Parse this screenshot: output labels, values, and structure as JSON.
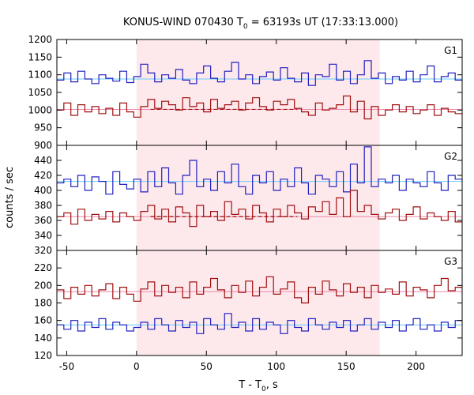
{
  "title": {
    "prefix": "KONUS-WIND 070430 T",
    "sub": "0",
    "suffix": " = 63193s UT (17:33:13.000)"
  },
  "axes": {
    "xlabel_main": "T - T",
    "xlabel_sub": "0",
    "xlabel_tail": ", s",
    "ylabel": "counts / sec"
  },
  "colors": {
    "blue_series": "#2020c0",
    "red_series": "#a01010",
    "blue_background": "#66ccff",
    "red_background": "#ee88aa",
    "interval_shade": "#fde8ec"
  },
  "chart_data": [
    {
      "type": "line",
      "panel": "G1",
      "xlim": [
        -57,
        233
      ],
      "ylim": [
        900,
        1200
      ],
      "yticks": [
        900,
        950,
        1000,
        1050,
        1100,
        1150,
        1200
      ],
      "xticks": [
        -50,
        0,
        50,
        100,
        150,
        200
      ],
      "highlight_interval": [
        0,
        174
      ],
      "background_levels": [
        {
          "series": "upper",
          "value": 1088
        },
        {
          "series": "lower",
          "value": 1002
        }
      ],
      "series": [
        {
          "key": "upper",
          "x": [
            -57,
            -52,
            -47,
            -42,
            -37,
            -32,
            -27,
            -22,
            -17,
            -12,
            -7,
            -2,
            3,
            8,
            13,
            18,
            23,
            28,
            33,
            38,
            43,
            48,
            53,
            58,
            63,
            68,
            73,
            78,
            83,
            88,
            93,
            98,
            103,
            108,
            113,
            118,
            123,
            128,
            133,
            138,
            143,
            148,
            153,
            158,
            163,
            168,
            173,
            178,
            183,
            188,
            193,
            198,
            203,
            208,
            213,
            218,
            223,
            228
          ],
          "y": [
            1085,
            1105,
            1080,
            1110,
            1088,
            1075,
            1100,
            1090,
            1082,
            1110,
            1078,
            1095,
            1130,
            1105,
            1080,
            1100,
            1090,
            1115,
            1085,
            1075,
            1105,
            1125,
            1090,
            1080,
            1110,
            1135,
            1088,
            1100,
            1075,
            1095,
            1108,
            1085,
            1120,
            1090,
            1080,
            1105,
            1070,
            1100,
            1095,
            1130,
            1085,
            1110,
            1075,
            1100,
            1140,
            1090,
            1105,
            1075,
            1095,
            1085,
            1110,
            1080,
            1100,
            1125,
            1080,
            1095,
            1105,
            1085
          ]
        },
        {
          "key": "lower",
          "x": [
            -57,
            -52,
            -47,
            -42,
            -37,
            -32,
            -27,
            -22,
            -17,
            -12,
            -7,
            -2,
            3,
            8,
            13,
            18,
            23,
            28,
            33,
            38,
            43,
            48,
            53,
            58,
            63,
            68,
            73,
            78,
            83,
            88,
            93,
            98,
            103,
            108,
            113,
            118,
            123,
            128,
            133,
            138,
            143,
            148,
            153,
            158,
            163,
            168,
            173,
            178,
            183,
            188,
            193,
            198,
            203,
            208,
            213,
            218,
            223,
            228
          ],
          "y": [
            1000,
            1020,
            985,
            1015,
            995,
            1010,
            990,
            1005,
            985,
            1020,
            995,
            980,
            1010,
            1030,
            1005,
            1025,
            1015,
            1000,
            1035,
            1010,
            1020,
            995,
            1030,
            1005,
            1015,
            1025,
            1000,
            1020,
            1035,
            1010,
            1000,
            1025,
            1015,
            1030,
            1005,
            995,
            985,
            1020,
            1000,
            1005,
            1015,
            1040,
            995,
            1025,
            975,
            1010,
            985,
            1000,
            1015,
            995,
            1010,
            990,
            1000,
            1015,
            985,
            1005,
            995,
            990
          ]
        }
      ]
    },
    {
      "type": "line",
      "panel": "G2",
      "xlim": [
        -57,
        233
      ],
      "ylim": [
        320,
        460
      ],
      "yticks": [
        320,
        340,
        360,
        380,
        400,
        420,
        440
      ],
      "xticks": [
        -50,
        0,
        50,
        100,
        150,
        200
      ],
      "highlight_interval": [
        0,
        174
      ],
      "background_levels": [
        {
          "series": "upper",
          "value": 412
        },
        {
          "series": "lower",
          "value": 365
        }
      ],
      "series": [
        {
          "key": "upper",
          "x": [
            -57,
            -52,
            -47,
            -42,
            -37,
            -32,
            -27,
            -22,
            -17,
            -12,
            -7,
            -2,
            3,
            8,
            13,
            18,
            23,
            28,
            33,
            38,
            43,
            48,
            53,
            58,
            63,
            68,
            73,
            78,
            83,
            88,
            93,
            98,
            103,
            108,
            113,
            118,
            123,
            128,
            133,
            138,
            143,
            148,
            153,
            158,
            163,
            168,
            173,
            178,
            183,
            188,
            193,
            198,
            203,
            208,
            213,
            218,
            223,
            228
          ],
          "y": [
            410,
            415,
            405,
            420,
            400,
            418,
            412,
            395,
            425,
            408,
            402,
            415,
            398,
            425,
            405,
            430,
            410,
            395,
            420,
            440,
            405,
            415,
            400,
            425,
            410,
            435,
            405,
            395,
            420,
            410,
            425,
            400,
            415,
            405,
            430,
            410,
            395,
            420,
            415,
            405,
            425,
            398,
            435,
            410,
            458,
            405,
            415,
            410,
            420,
            400,
            415,
            410,
            405,
            425,
            410,
            400,
            420,
            415
          ]
        },
        {
          "key": "lower",
          "x": [
            -57,
            -52,
            -47,
            -42,
            -37,
            -32,
            -27,
            -22,
            -17,
            -12,
            -7,
            -2,
            3,
            8,
            13,
            18,
            23,
            28,
            33,
            38,
            43,
            48,
            53,
            58,
            63,
            68,
            73,
            78,
            83,
            88,
            93,
            98,
            103,
            108,
            113,
            118,
            123,
            128,
            133,
            138,
            143,
            148,
            153,
            158,
            163,
            168,
            173,
            178,
            183,
            188,
            193,
            198,
            203,
            208,
            213,
            218,
            223,
            228
          ],
          "y": [
            365,
            370,
            355,
            375,
            360,
            368,
            362,
            372,
            358,
            370,
            365,
            360,
            372,
            380,
            362,
            375,
            358,
            378,
            370,
            352,
            380,
            365,
            372,
            360,
            385,
            368,
            375,
            362,
            380,
            370,
            358,
            375,
            365,
            380,
            370,
            362,
            378,
            372,
            385,
            368,
            390,
            365,
            400,
            372,
            380,
            368,
            362,
            370,
            375,
            360,
            368,
            378,
            362,
            370,
            365,
            360,
            372,
            358
          ]
        }
      ]
    },
    {
      "type": "line",
      "panel": "G3",
      "xlim": [
        -57,
        233
      ],
      "ylim": [
        120,
        240
      ],
      "yticks": [
        120,
        140,
        160,
        180,
        200,
        220
      ],
      "xticks": [
        -50,
        0,
        50,
        100,
        150,
        200
      ],
      "highlight_interval": [
        0,
        174
      ],
      "background_levels": [
        {
          "series": "upper",
          "value": 193
        },
        {
          "series": "lower",
          "value": 155
        }
      ],
      "series": [
        {
          "key": "upper",
          "x": [
            -57,
            -52,
            -47,
            -42,
            -37,
            -32,
            -27,
            -22,
            -17,
            -12,
            -7,
            -2,
            3,
            8,
            13,
            18,
            23,
            28,
            33,
            38,
            43,
            48,
            53,
            58,
            63,
            68,
            73,
            78,
            83,
            88,
            93,
            98,
            103,
            108,
            113,
            118,
            123,
            128,
            133,
            138,
            143,
            148,
            153,
            158,
            163,
            168,
            173,
            178,
            183,
            188,
            193,
            198,
            203,
            208,
            213,
            218,
            223,
            228
          ],
          "y": [
            195,
            185,
            198,
            190,
            200,
            188,
            195,
            202,
            185,
            198,
            190,
            182,
            196,
            204,
            188,
            200,
            192,
            198,
            186,
            204,
            190,
            198,
            208,
            195,
            186,
            200,
            192,
            205,
            188,
            198,
            210,
            190,
            196,
            204,
            186,
            180,
            198,
            190,
            205,
            195,
            188,
            202,
            192,
            198,
            186,
            200,
            192,
            196,
            190,
            204,
            188,
            198,
            195,
            186,
            200,
            208,
            194,
            198
          ]
        },
        {
          "key": "lower",
          "x": [
            -57,
            -52,
            -47,
            -42,
            -37,
            -32,
            -27,
            -22,
            -17,
            -12,
            -7,
            -2,
            3,
            8,
            13,
            18,
            23,
            28,
            33,
            38,
            43,
            48,
            53,
            58,
            63,
            68,
            73,
            78,
            83,
            88,
            93,
            98,
            103,
            108,
            113,
            118,
            123,
            128,
            133,
            138,
            143,
            148,
            153,
            158,
            163,
            168,
            173,
            178,
            183,
            188,
            193,
            198,
            203,
            208,
            213,
            218,
            223,
            228
          ],
          "y": [
            155,
            150,
            160,
            148,
            158,
            152,
            162,
            150,
            158,
            155,
            148,
            152,
            158,
            150,
            162,
            155,
            148,
            160,
            152,
            158,
            145,
            162,
            155,
            150,
            168,
            152,
            158,
            148,
            162,
            150,
            158,
            155,
            145,
            160,
            152,
            148,
            162,
            155,
            150,
            158,
            152,
            160,
            148,
            155,
            162,
            150,
            158,
            152,
            160,
            148,
            155,
            162,
            150,
            155,
            148,
            158,
            152,
            160
          ]
        }
      ]
    }
  ]
}
